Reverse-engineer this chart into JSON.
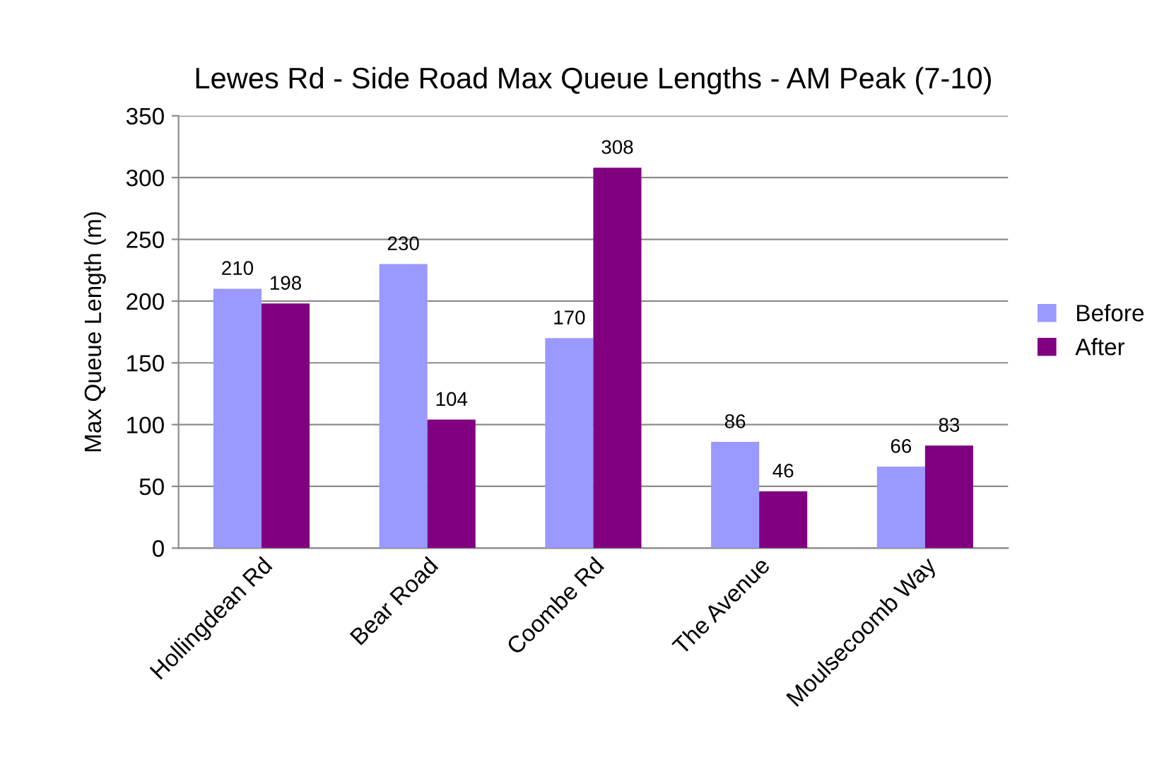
{
  "chart_data": {
    "type": "bar",
    "title": "Lewes Rd - Side Road Max Queue Lengths - AM Peak (7-10)",
    "ylabel": "Max Queue Length (m)",
    "categories": [
      "Hollingdean Rd",
      "Bear Road",
      "Coombe Rd",
      "The Avenue",
      "Moulsecoomb Way"
    ],
    "series": [
      {
        "name": "Before",
        "color": "#9999ff",
        "values": [
          210,
          230,
          170,
          86,
          66
        ]
      },
      {
        "name": "After",
        "color": "#800080",
        "values": [
          198,
          104,
          308,
          46,
          83
        ]
      }
    ],
    "ylim": [
      0,
      350
    ],
    "yticks": [
      0,
      50,
      100,
      150,
      200,
      250,
      300,
      350
    ],
    "grid": "y",
    "legend": "right",
    "data_labels": true
  }
}
